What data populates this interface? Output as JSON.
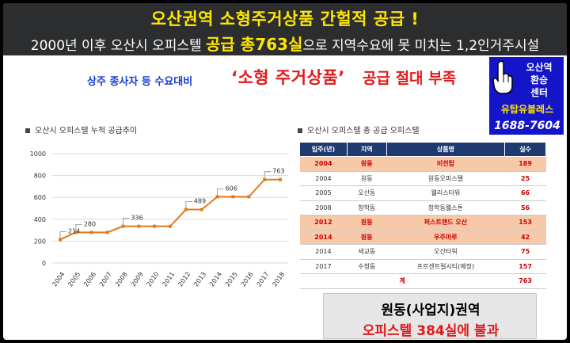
{
  "header": {
    "title": "오산권역 소형주거상품 간헐적 공급 !",
    "subtitle_pre": "2000년 이후 오산시 오피스텔 ",
    "subtitle_highlight": "공급 총763실",
    "subtitle_post": "으로 지역수요에 못 미치는 1,2인거주시설"
  },
  "subhead": {
    "lead": "상주 종사자 등 수요대비",
    "main": "‘소형 주거상품’",
    "tail": "공급 절대 부족"
  },
  "badge": {
    "line1": "오산역",
    "line2": "환승",
    "line3": "센터",
    "brand": "유탑유블레스",
    "phone": "1688-7604",
    "icon": "pointing-hand-cursor-icon"
  },
  "chart_panel": {
    "title": "오산시 오피스텔 누적 공급추이"
  },
  "table_panel": {
    "title": "오산시 오피스텔 총 공급 오피스텔"
  },
  "chart_data": {
    "type": "line",
    "title": "오산시 오피스텔 누적 공급추이",
    "categories": [
      "2004",
      "2005",
      "2006",
      "2007",
      "2008",
      "2009",
      "2010",
      "2011",
      "2012",
      "2013",
      "2014",
      "2015",
      "2016",
      "2017",
      "2018"
    ],
    "values": [
      214,
      280,
      280,
      280,
      336,
      336,
      336,
      336,
      489,
      489,
      606,
      606,
      606,
      763,
      763
    ],
    "labels": {
      "2004": "214",
      "2005": "280",
      "2008": "336",
      "2012": "489",
      "2014": "606",
      "2017": "763"
    },
    "ylim": [
      0,
      1000
    ],
    "yticks": [
      "0",
      "200",
      "400",
      "600",
      "800",
      "1000"
    ],
    "grid": true,
    "color": "#e07b1a"
  },
  "table": {
    "headers": [
      "입주(년)",
      "지역",
      "상품명",
      "실수"
    ],
    "rows": [
      {
        "year": "2004",
        "area": "원동",
        "name": "비전탑",
        "units": "189",
        "highlight": true
      },
      {
        "year": "2004",
        "area": "원동",
        "name": "원동오피스텔",
        "units": "25",
        "highlight": false
      },
      {
        "year": "2005",
        "area": "오산동",
        "name": "웰리스타워",
        "units": "66",
        "highlight": false
      },
      {
        "year": "2008",
        "area": "청학동",
        "name": "청학동웰스톤",
        "units": "56",
        "highlight": false
      },
      {
        "year": "2012",
        "area": "원동",
        "name": "퍼스트랜드 오산",
        "units": "153",
        "highlight": true
      },
      {
        "year": "2014",
        "area": "원동",
        "name": "우주마루",
        "units": "42",
        "highlight": true
      },
      {
        "year": "2014",
        "area": "세교동",
        "name": "오산타워",
        "units": "75",
        "highlight": false
      },
      {
        "year": "2017",
        "area": "수청동",
        "name": "프르센트럴시티(예정)",
        "units": "157",
        "highlight": false
      }
    ],
    "total_label": "계",
    "total_value": "763"
  },
  "summary": {
    "line1": "원동(사업지)권역",
    "line2": "오피스텔 384실에 불과"
  }
}
